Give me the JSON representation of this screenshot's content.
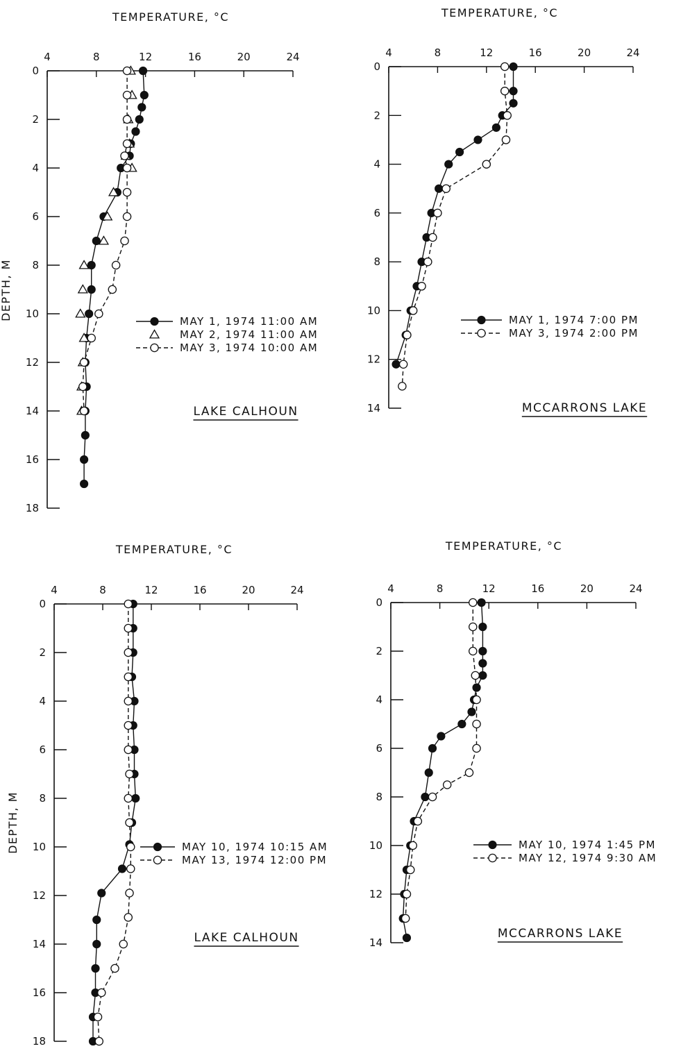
{
  "chart_data": [
    {
      "type": "line",
      "title": "LAKE CALHOUN",
      "xlabel": "TEMPERATURE, °C",
      "ylabel": "DEPTH, M",
      "xlim": [
        4,
        24
      ],
      "ylim": [
        0,
        18
      ],
      "y_inverted": true,
      "x_ticks": [
        4,
        8,
        12,
        16,
        20,
        24
      ],
      "y_ticks": [
        0,
        2,
        4,
        6,
        8,
        10,
        12,
        14,
        16,
        18
      ],
      "series": [
        {
          "name": "MAY 1, 1974  11:00 AM",
          "marker": "filled-circle",
          "line": "solid",
          "x": [
            11.8,
            11.9,
            11.7,
            11.5,
            11.2,
            10.8,
            10.7,
            10.0,
            9.7,
            8.6,
            8.0,
            7.6,
            7.6,
            7.4,
            7.2,
            7.1,
            7.2,
            7.1,
            7.1,
            7.0,
            7.0
          ],
          "y": [
            0,
            1,
            1.5,
            2,
            2.5,
            3,
            3.5,
            4,
            5,
            6,
            7,
            8,
            9,
            10,
            11,
            12,
            13,
            14,
            15,
            16,
            17
          ]
        },
        {
          "name": "MAY 2, 1974  11:00 AM",
          "marker": "open-triangle",
          "line": "none",
          "x": [
            10.8,
            10.9,
            10.6,
            10.7,
            10.4,
            10.9,
            9.4,
            8.9,
            8.6,
            7.0,
            6.9,
            6.7,
            7.0,
            6.9,
            6.8,
            6.8
          ],
          "y": [
            0,
            1,
            2,
            3,
            3.5,
            4,
            5,
            6,
            7,
            8,
            9,
            10,
            11,
            12,
            13,
            14
          ]
        },
        {
          "name": "MAY 3, 1974  10:00 AM",
          "marker": "open-circle",
          "line": "dashed",
          "x": [
            10.5,
            10.5,
            10.5,
            10.5,
            10.3,
            10.5,
            10.5,
            10.5,
            10.3,
            9.6,
            9.3,
            8.2,
            7.6,
            7.0,
            6.9,
            7.0
          ],
          "y": [
            0,
            1,
            2,
            3,
            3.5,
            4,
            5,
            6,
            7,
            8,
            9,
            10,
            11,
            12,
            13,
            14
          ]
        }
      ]
    },
    {
      "type": "line",
      "title": "MCCARRONS LAKE",
      "xlabel": "TEMPERATURE, °C",
      "ylabel": "",
      "xlim": [
        4,
        24
      ],
      "ylim": [
        0,
        14
      ],
      "y_inverted": true,
      "x_ticks": [
        4,
        8,
        12,
        16,
        20,
        24
      ],
      "y_ticks": [
        0,
        2,
        4,
        6,
        8,
        10,
        12,
        14
      ],
      "series": [
        {
          "name": "MAY 1, 1974  7:00 PM",
          "marker": "filled-circle",
          "line": "solid",
          "x": [
            14.2,
            14.2,
            14.2,
            13.3,
            12.8,
            11.3,
            9.8,
            8.9,
            8.1,
            7.5,
            7.1,
            6.7,
            6.3,
            5.8,
            5.4,
            4.6
          ],
          "y": [
            0,
            1,
            1.5,
            2,
            2.5,
            3,
            3.5,
            4,
            5,
            6,
            7,
            8,
            9,
            10,
            11,
            12.2
          ]
        },
        {
          "name": "MAY 3, 1974  2:00 PM",
          "marker": "open-circle",
          "line": "dashed",
          "x": [
            13.5,
            13.5,
            13.7,
            13.6,
            12.0,
            8.7,
            8.0,
            7.6,
            7.2,
            6.7,
            6.0,
            5.5,
            5.2,
            5.1
          ],
          "y": [
            0,
            1,
            2,
            3,
            4,
            5,
            6,
            7,
            8,
            9,
            10,
            11,
            12.2,
            13.1
          ]
        }
      ]
    },
    {
      "type": "line",
      "title": "LAKE CALHOUN",
      "xlabel": "TEMPERATURE, °C",
      "ylabel": "DEPTH, M",
      "xlim": [
        4,
        24
      ],
      "ylim": [
        0,
        18
      ],
      "y_inverted": true,
      "x_ticks": [
        4,
        8,
        12,
        16,
        20,
        24
      ],
      "y_ticks": [
        0,
        2,
        4,
        6,
        8,
        10,
        12,
        14,
        16,
        18
      ],
      "series": [
        {
          "name": "MAY 10, 1974  10:15 AM",
          "marker": "filled-circle",
          "line": "solid",
          "x": [
            10.5,
            10.5,
            10.5,
            10.4,
            10.6,
            10.5,
            10.6,
            10.6,
            10.7,
            10.4,
            10.2,
            9.6,
            7.9,
            7.5,
            7.5,
            7.4,
            7.4,
            7.2,
            7.2
          ],
          "y": [
            0,
            1,
            2,
            3,
            4,
            5,
            6,
            7,
            8,
            9,
            9.9,
            10.9,
            11.9,
            13,
            14,
            15,
            16,
            17,
            18
          ]
        },
        {
          "name": "MAY 13, 1974  12:00 PM",
          "marker": "open-circle",
          "line": "dashed",
          "x": [
            10.1,
            10.1,
            10.1,
            10.1,
            10.1,
            10.1,
            10.1,
            10.2,
            10.1,
            10.2,
            10.3,
            10.3,
            10.2,
            10.1,
            9.7,
            9.0,
            7.9,
            7.6,
            7.7
          ],
          "y": [
            0,
            1,
            2,
            3,
            4,
            5,
            6,
            7,
            8,
            9,
            10,
            10.9,
            11.9,
            12.9,
            14,
            15,
            16,
            17,
            18
          ]
        }
      ]
    },
    {
      "type": "line",
      "title": "MCCARRONS LAKE",
      "xlabel": "TEMPERATURE, °C",
      "ylabel": "",
      "xlim": [
        4,
        24
      ],
      "ylim": [
        0,
        14
      ],
      "y_inverted": true,
      "x_ticks": [
        4,
        8,
        12,
        16,
        20,
        24
      ],
      "y_ticks": [
        0,
        2,
        4,
        6,
        8,
        10,
        12,
        14
      ],
      "series": [
        {
          "name": "MAY 10, 1974  1:45 PM",
          "marker": "filled-circle",
          "line": "solid",
          "x": [
            11.4,
            11.5,
            11.5,
            11.5,
            11.5,
            11.0,
            10.8,
            10.6,
            9.8,
            8.1,
            7.4,
            7.1,
            6.8,
            5.9,
            5.6,
            5.3,
            5.1,
            5.0,
            5.3
          ],
          "y": [
            0,
            1,
            2,
            2.5,
            3,
            3.5,
            4,
            4.5,
            5,
            5.5,
            6,
            7,
            8,
            9,
            10,
            11,
            12,
            13,
            13.8
          ]
        },
        {
          "name": "MAY 12, 1974  9:30 AM",
          "marker": "open-circle",
          "line": "dashed",
          "x": [
            10.7,
            10.7,
            10.7,
            10.9,
            11.0,
            11.0,
            11.0,
            10.4,
            8.6,
            7.4,
            6.2,
            5.8,
            5.6,
            5.3,
            5.2
          ],
          "y": [
            0,
            1,
            2,
            3,
            4,
            5,
            6,
            7,
            7.5,
            8,
            9,
            10,
            11,
            12,
            13
          ]
        }
      ]
    }
  ]
}
